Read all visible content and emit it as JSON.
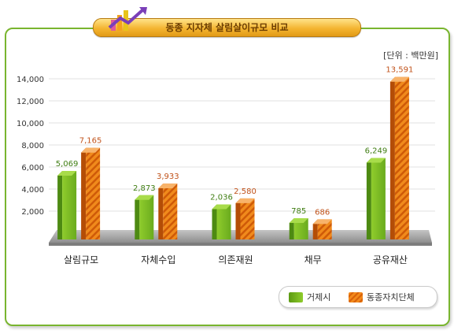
{
  "title": "동종 지자체 살림살이규모 비교",
  "unit_label": "[단위 : 백만원]",
  "colors": {
    "frame": "#79b52f",
    "series_green": "#76b82a",
    "series_orange": "#f08a1c",
    "value_green": "#3f7d12",
    "value_orange": "#c0521a"
  },
  "chart_data": {
    "type": "bar",
    "title": "동종 지자체 살림살이규모 비교",
    "ylabel": "",
    "xlabel": "",
    "ylim": [
      0,
      14000
    ],
    "yticks": [
      "2,000",
      "4,000",
      "6,000",
      "8,000",
      "10,000",
      "12,000",
      "14,000"
    ],
    "ytick_values": [
      2000,
      4000,
      6000,
      8000,
      10000,
      12000,
      14000
    ],
    "grid": true,
    "legend_position": "bottom-right",
    "categories": [
      "살림규모",
      "자체수입",
      "의존재원",
      "채무",
      "공유재산"
    ],
    "series": [
      {
        "name": "거제시",
        "values": [
          5069,
          2873,
          2036,
          785,
          6249
        ],
        "labels": [
          "5,069",
          "2,873",
          "2,036",
          "785",
          "6,249"
        ]
      },
      {
        "name": "동종자치단체",
        "values": [
          7165,
          3933,
          2580,
          686,
          13591
        ],
        "labels": [
          "7,165",
          "3,933",
          "2,580",
          "686",
          "13,591"
        ]
      }
    ]
  }
}
